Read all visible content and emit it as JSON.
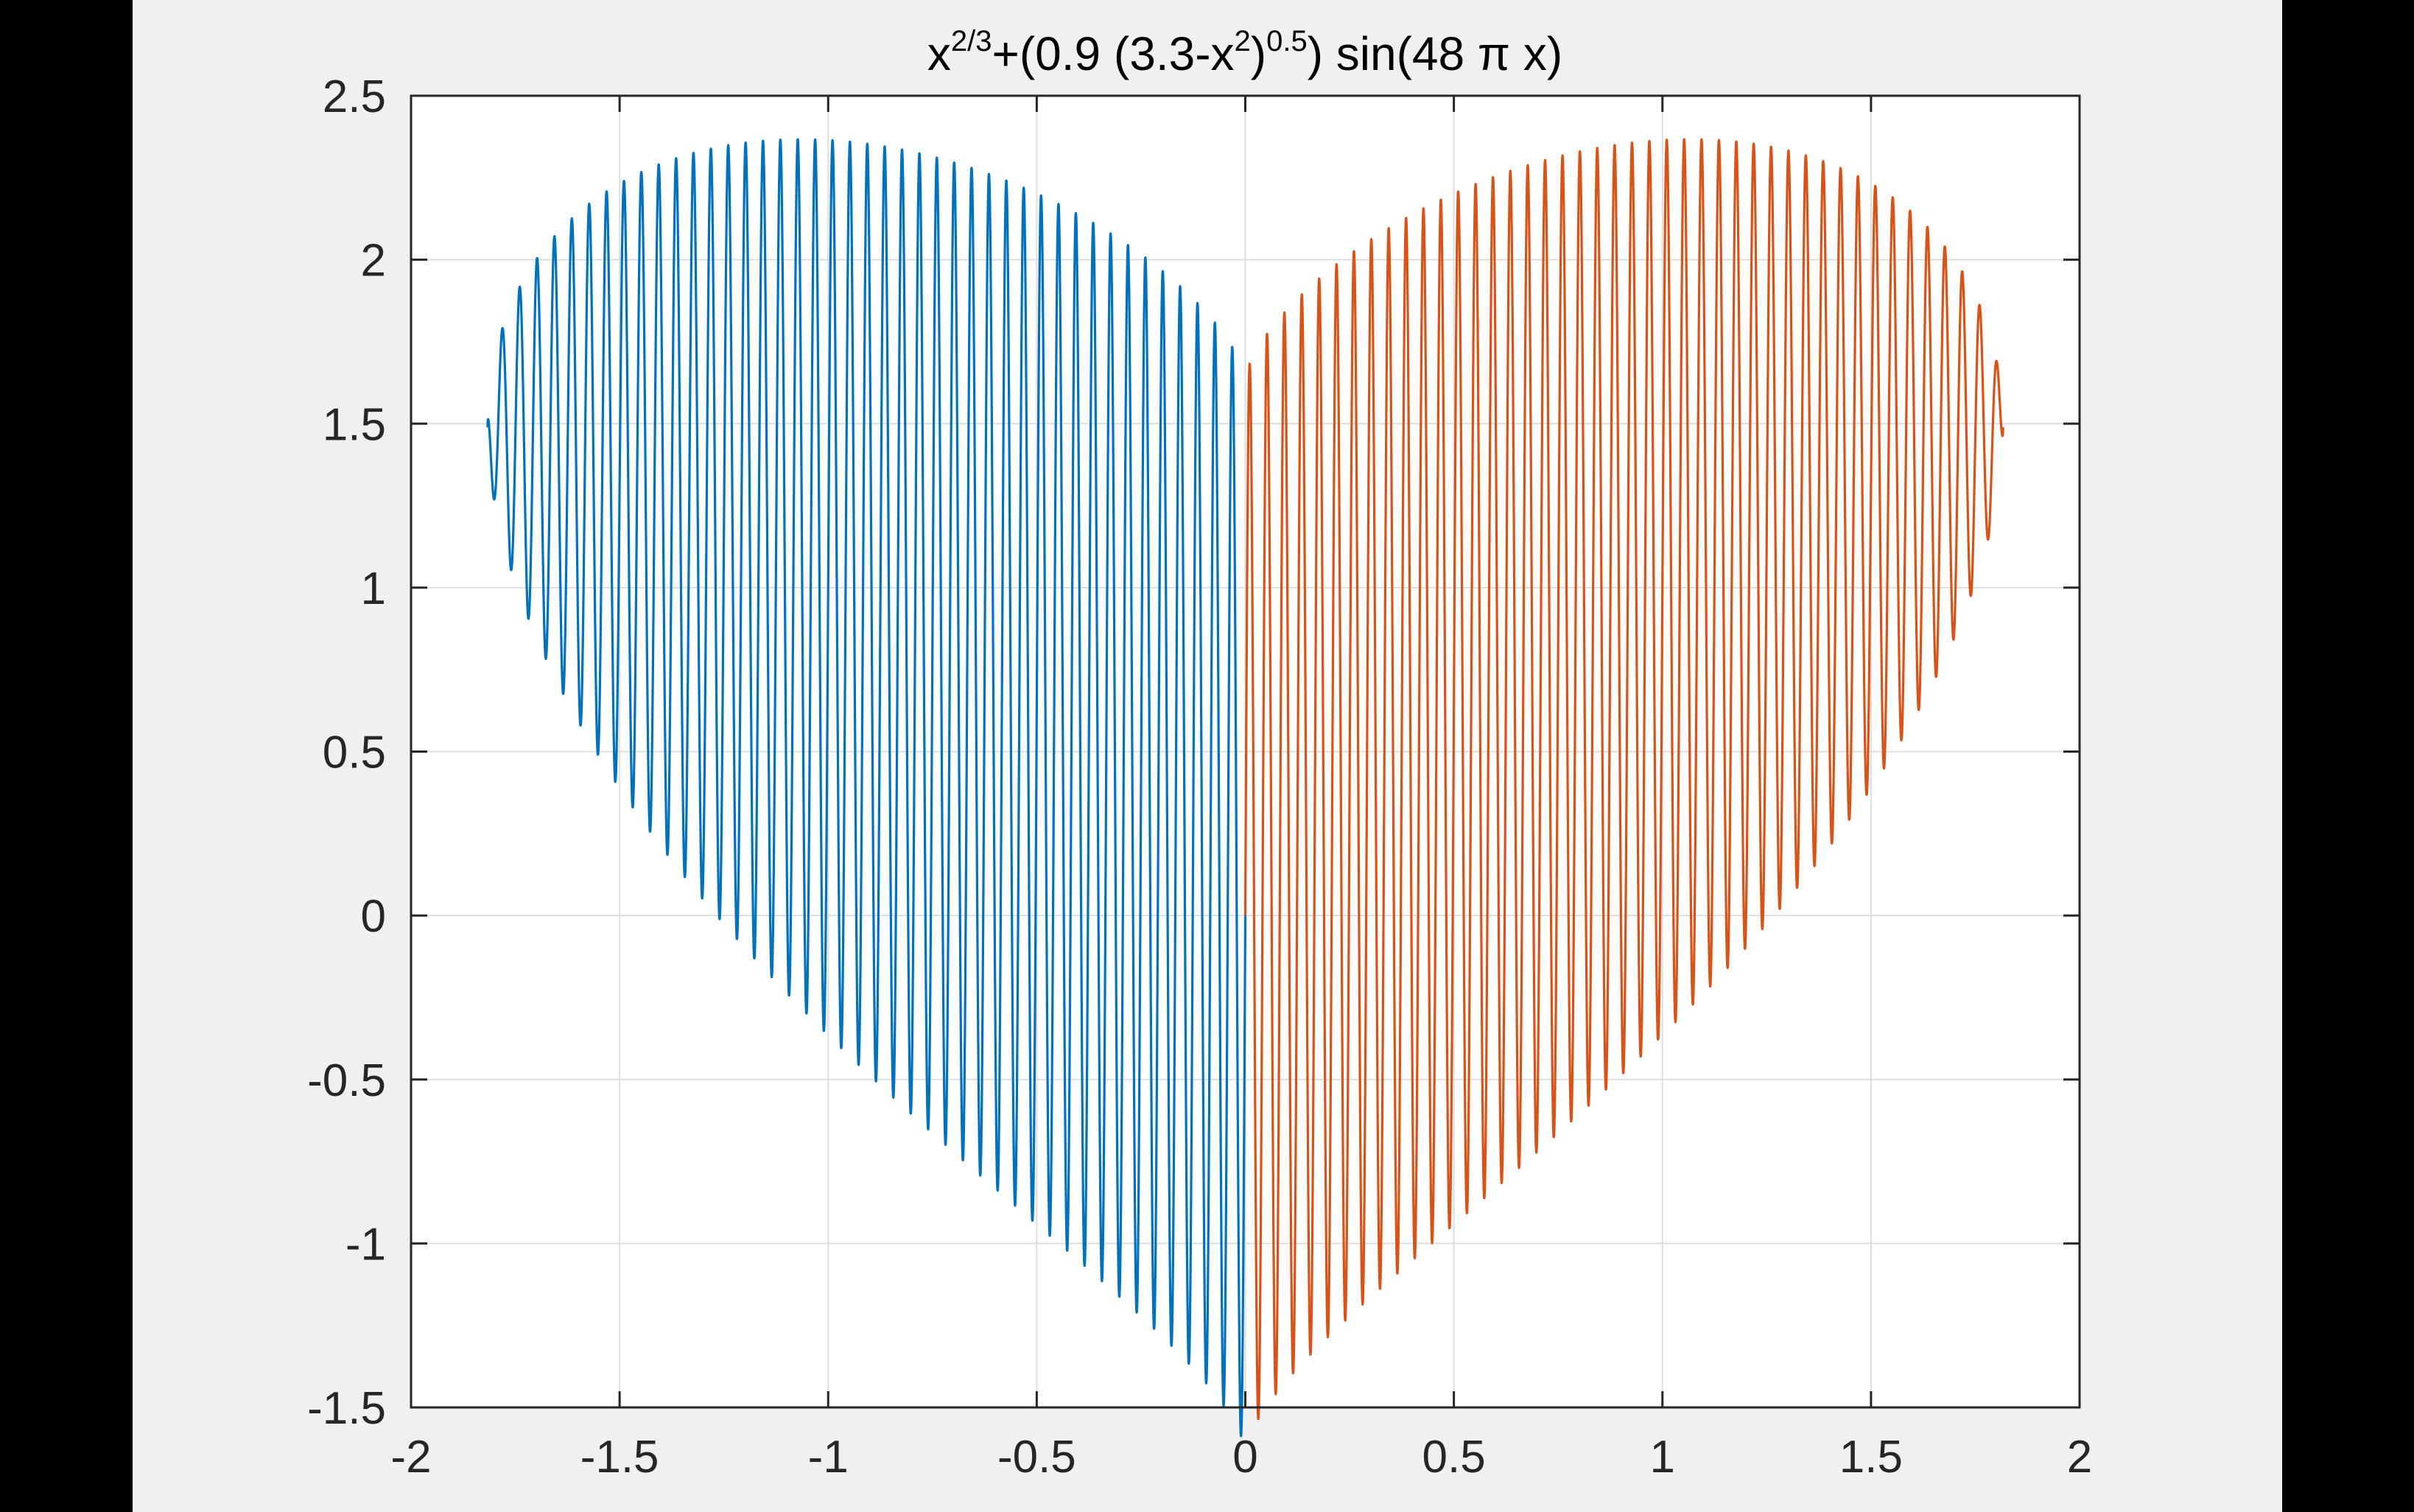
{
  "chart_data": {
    "type": "line",
    "title": {
      "base1": "x",
      "sup1": "2/3",
      "part2": "+(0.9 (3.3-x",
      "sup2": "2",
      "part3": ")",
      "sup3": "0.5",
      "part4": ") sin(48 π x)"
    },
    "xlabel": "",
    "ylabel": "",
    "xlim": [
      -2,
      2
    ],
    "ylim": [
      -1.5,
      2.5
    ],
    "xticks": [
      -2,
      -1.5,
      -1,
      -0.5,
      0,
      0.5,
      1,
      1.5,
      2
    ],
    "xtick_labels": [
      "-2",
      "-1.5",
      "-1",
      "-0.5",
      "0",
      "0.5",
      "1",
      "1.5",
      "2"
    ],
    "yticks": [
      -1.5,
      -1,
      -0.5,
      0,
      0.5,
      1,
      1.5,
      2,
      2.5
    ],
    "ytick_labels": [
      "-1.5",
      "-1",
      "-0.5",
      "0",
      "0.5",
      "1",
      "1.5",
      "2",
      "2.5"
    ],
    "grid": true,
    "function": "x^(2/3) + 0.9*sqrt(3.3 - x^2)*sin(48*pi*x)",
    "series": [
      {
        "x_range": [
          -1.8166,
          0
        ],
        "color": "#0072BD"
      },
      {
        "x_range": [
          0,
          1.8166
        ],
        "color": "#D95319"
      }
    ]
  }
}
